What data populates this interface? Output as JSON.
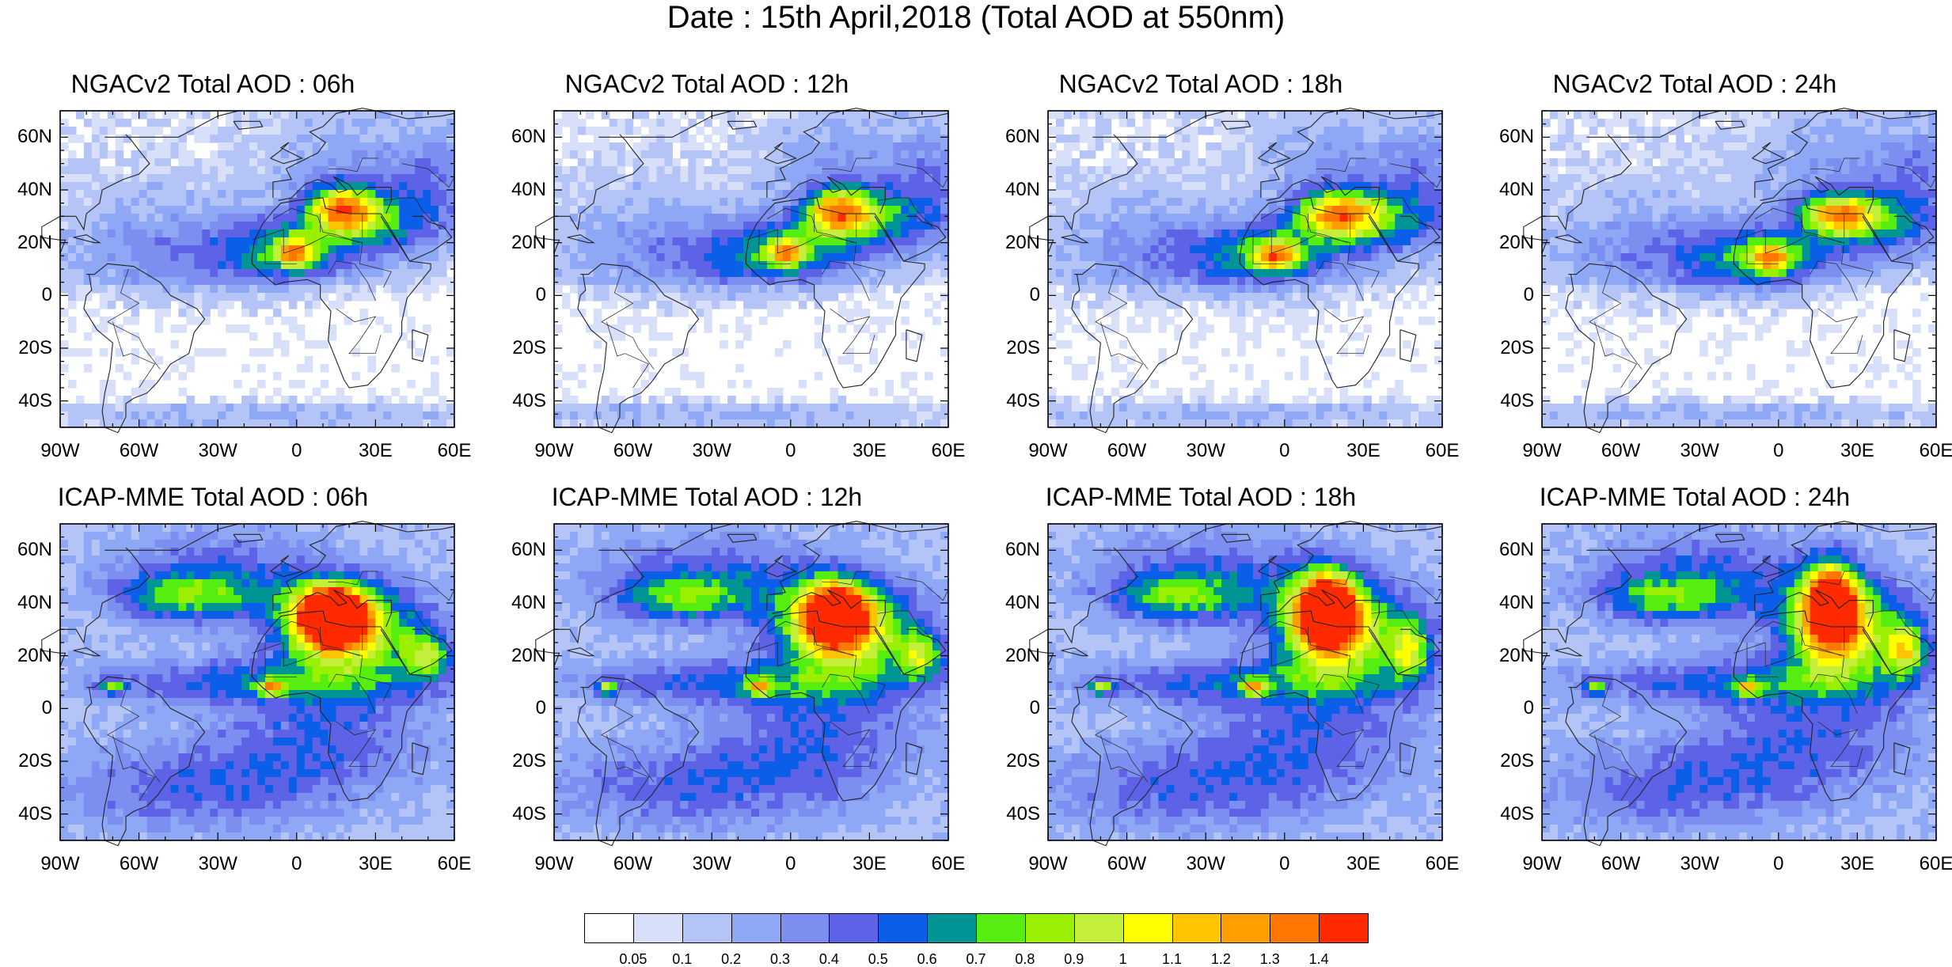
{
  "figure": {
    "title": "Date : 15th April,2018 (Total AOD at 550nm)"
  },
  "axes": {
    "lat_labels": [
      "60N",
      "40N",
      "20N",
      "0",
      "20S",
      "40S"
    ],
    "lon_labels": [
      "90W",
      "60W",
      "30W",
      "0",
      "30E",
      "60E"
    ],
    "lat_values": [
      60,
      40,
      20,
      0,
      -20,
      -40
    ],
    "lon_values": [
      -90,
      -60,
      -30,
      0,
      30,
      60
    ],
    "lat_range": [
      -50,
      70
    ],
    "lon_range": [
      -90,
      60
    ]
  },
  "panels": [
    {
      "title": "NGACv2 Total AOD : 06h",
      "model": "NGACv2",
      "hour": "06h",
      "plumes": [
        [
          -1,
          16,
          0.75,
          5,
          4
        ],
        [
          17,
          33,
          0.85,
          9,
          6
        ],
        [
          30,
          28,
          0.5,
          18,
          9
        ],
        [
          -6,
          18,
          0.42,
          20,
          9
        ],
        [
          -30,
          12,
          0.2,
          40,
          10
        ],
        [
          -55,
          25,
          0.15,
          25,
          15
        ],
        [
          55,
          45,
          0.25,
          12,
          15
        ],
        [
          20,
          50,
          0.22,
          22,
          15
        ],
        [
          -20,
          -45,
          0.15,
          70,
          4
        ]
      ]
    },
    {
      "title": "NGACv2 Total AOD : 12h",
      "model": "NGACv2",
      "hour": "12h",
      "plumes": [
        [
          -2,
          16,
          0.7,
          5,
          4
        ],
        [
          18,
          32,
          0.85,
          9,
          6
        ],
        [
          32,
          28,
          0.5,
          18,
          9
        ],
        [
          -6,
          17,
          0.42,
          20,
          9
        ],
        [
          -30,
          12,
          0.2,
          40,
          10
        ],
        [
          -55,
          25,
          0.15,
          25,
          15
        ],
        [
          55,
          45,
          0.25,
          12,
          15
        ],
        [
          20,
          50,
          0.22,
          22,
          15
        ],
        [
          -20,
          -45,
          0.15,
          70,
          4
        ]
      ]
    },
    {
      "title": "NGACv2 Total AOD : 18h",
      "model": "NGACv2",
      "hour": "18h",
      "plumes": [
        [
          -3,
          15,
          0.75,
          6,
          4
        ],
        [
          20,
          31,
          0.82,
          11,
          6
        ],
        [
          34,
          28,
          0.5,
          18,
          9
        ],
        [
          -7,
          16,
          0.42,
          20,
          9
        ],
        [
          -30,
          12,
          0.2,
          40,
          10
        ],
        [
          -55,
          25,
          0.15,
          25,
          15
        ],
        [
          55,
          45,
          0.25,
          12,
          15
        ],
        [
          20,
          50,
          0.22,
          22,
          15
        ],
        [
          -20,
          -45,
          0.15,
          70,
          4
        ]
      ]
    },
    {
      "title": "NGACv2 Total AOD : 24h",
      "model": "NGACv2",
      "hour": "24h",
      "plumes": [
        [
          -3,
          14,
          0.72,
          6,
          4
        ],
        [
          23,
          31,
          0.8,
          10,
          5
        ],
        [
          35,
          27,
          0.5,
          18,
          9
        ],
        [
          -8,
          15,
          0.42,
          20,
          9
        ],
        [
          -30,
          12,
          0.2,
          40,
          10
        ],
        [
          -55,
          25,
          0.15,
          25,
          15
        ],
        [
          55,
          45,
          0.25,
          12,
          15
        ],
        [
          20,
          50,
          0.22,
          22,
          15
        ],
        [
          -20,
          -45,
          0.15,
          70,
          4
        ]
      ]
    },
    {
      "title": "ICAP-MME Total AOD : 06h",
      "model": "ICAP-MME",
      "hour": "06h",
      "plumes": [
        [
          13,
          36,
          1.4,
          7,
          6
        ],
        [
          14,
          33,
          1.05,
          12,
          9
        ],
        [
          25,
          28,
          0.55,
          22,
          14
        ],
        [
          -42,
          42,
          0.42,
          18,
          6
        ],
        [
          -20,
          10,
          0.35,
          45,
          6
        ],
        [
          -70,
          8,
          0.6,
          3,
          2
        ],
        [
          -10,
          8,
          0.7,
          3,
          2
        ],
        [
          50,
          20,
          0.55,
          6,
          6
        ],
        [
          10,
          -10,
          0.3,
          30,
          15
        ],
        [
          -40,
          -30,
          0.3,
          40,
          12
        ],
        [
          -30,
          50,
          0.35,
          30,
          12
        ]
      ]
    },
    {
      "title": "ICAP-MME Total AOD : 12h",
      "model": "ICAP-MME",
      "hour": "12h",
      "plumes": [
        [
          17,
          36,
          1.25,
          6,
          6
        ],
        [
          17,
          34,
          1.0,
          12,
          10
        ],
        [
          25,
          28,
          0.55,
          22,
          14
        ],
        [
          -42,
          42,
          0.42,
          18,
          6
        ],
        [
          -20,
          10,
          0.35,
          45,
          6
        ],
        [
          -70,
          8,
          0.6,
          3,
          2
        ],
        [
          -12,
          8,
          0.7,
          3,
          2
        ],
        [
          50,
          20,
          0.55,
          6,
          6
        ],
        [
          10,
          -10,
          0.3,
          30,
          15
        ],
        [
          -40,
          -30,
          0.3,
          40,
          12
        ],
        [
          -30,
          50,
          0.35,
          30,
          12
        ]
      ]
    },
    {
      "title": "ICAP-MME Total AOD : 18h",
      "model": "ICAP-MME",
      "hour": "18h",
      "plumes": [
        [
          16,
          37,
          1.2,
          6,
          8
        ],
        [
          16,
          35,
          0.95,
          11,
          12
        ],
        [
          28,
          28,
          0.55,
          22,
          14
        ],
        [
          -42,
          42,
          0.42,
          18,
          6
        ],
        [
          -20,
          10,
          0.35,
          45,
          6
        ],
        [
          -70,
          8,
          0.6,
          3,
          2
        ],
        [
          -12,
          8,
          0.7,
          3,
          2
        ],
        [
          48,
          22,
          0.6,
          5,
          7
        ],
        [
          10,
          -10,
          0.3,
          30,
          15
        ],
        [
          -40,
          -30,
          0.3,
          40,
          12
        ],
        [
          -30,
          50,
          0.35,
          30,
          12
        ]
      ]
    },
    {
      "title": "ICAP-MME Total AOD : 24h",
      "model": "ICAP-MME",
      "hour": "24h",
      "plumes": [
        [
          20,
          40,
          1.15,
          5,
          8
        ],
        [
          20,
          36,
          0.95,
          10,
          13
        ],
        [
          30,
          28,
          0.55,
          22,
          14
        ],
        [
          -42,
          42,
          0.42,
          18,
          6
        ],
        [
          -20,
          10,
          0.35,
          45,
          6
        ],
        [
          -70,
          8,
          0.6,
          3,
          2
        ],
        [
          -12,
          8,
          0.7,
          3,
          2
        ],
        [
          48,
          22,
          0.6,
          5,
          7
        ],
        [
          10,
          -10,
          0.3,
          30,
          15
        ],
        [
          -40,
          -30,
          0.3,
          40,
          12
        ],
        [
          -30,
          50,
          0.35,
          30,
          12
        ]
      ]
    }
  ],
  "colorbar": {
    "colors": [
      "#ffffff",
      "#d7dff9",
      "#b5c4f6",
      "#8fa8f5",
      "#7d8ef1",
      "#5d62e6",
      "#0a5ee8",
      "#009494",
      "#55ee10",
      "#9af000",
      "#c3ef3a",
      "#ffff00",
      "#ffc400",
      "#ff9e00",
      "#ff7700",
      "#ff2a00"
    ],
    "tick_labels": [
      "0.05",
      "0.1",
      "0.2",
      "0.3",
      "0.4",
      "0.5",
      "0.6",
      "0.7",
      "0.8",
      "0.9",
      "1",
      "1.1",
      "1.2",
      "1.3",
      "1.4"
    ],
    "levels": [
      0.05,
      0.1,
      0.2,
      0.3,
      0.4,
      0.5,
      0.6,
      0.7,
      0.8,
      0.9,
      1,
      1.1,
      1.2,
      1.3,
      1.4
    ]
  }
}
